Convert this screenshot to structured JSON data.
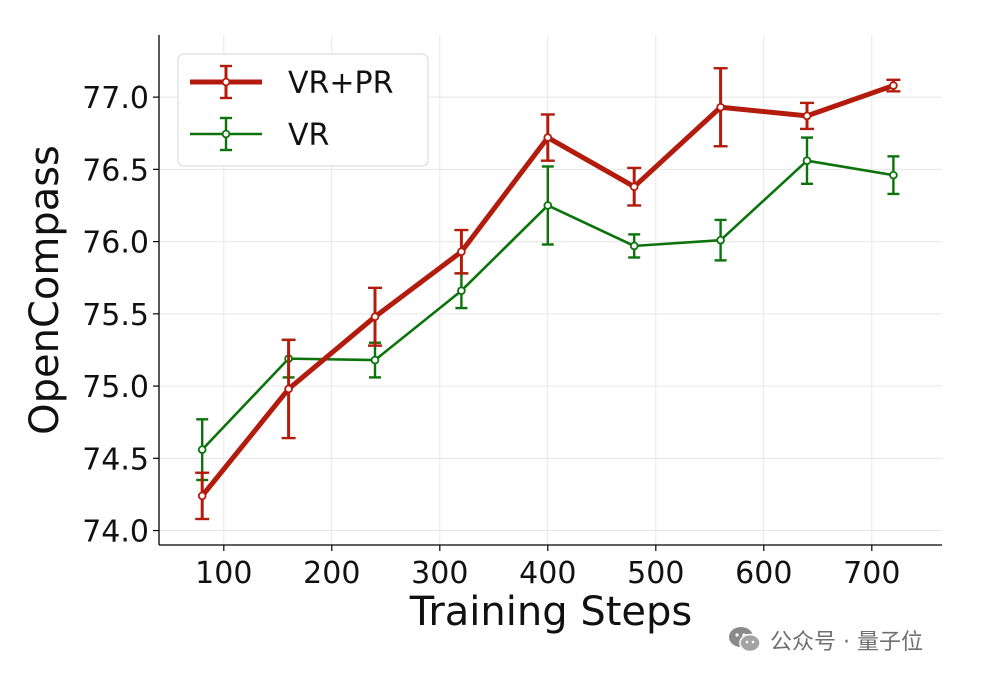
{
  "chart_data": {
    "type": "line",
    "title": "",
    "xlabel": "Training Steps",
    "ylabel": "OpenCompass",
    "xlim": [
      40,
      765
    ],
    "ylim": [
      73.9,
      77.43
    ],
    "xticks": [
      100,
      200,
      300,
      400,
      500,
      600,
      700
    ],
    "yticks": [
      74.0,
      74.5,
      75.0,
      75.5,
      76.0,
      76.5,
      77.0
    ],
    "grid": true,
    "legend_position": "top-left",
    "series": [
      {
        "name": "VR+PR",
        "color": "#b31b0c",
        "x": [
          80,
          160,
          240,
          320,
          400,
          480,
          560,
          640,
          720
        ],
        "y": [
          74.24,
          74.98,
          75.48,
          75.93,
          76.72,
          76.38,
          76.93,
          76.87,
          77.08
        ],
        "err": [
          0.16,
          0.34,
          0.2,
          0.15,
          0.16,
          0.13,
          0.27,
          0.09,
          0.04
        ]
      },
      {
        "name": "VR",
        "color": "#0c730c",
        "x": [
          80,
          160,
          240,
          320,
          400,
          480,
          560,
          640,
          720
        ],
        "y": [
          74.56,
          75.19,
          75.18,
          75.66,
          76.25,
          75.97,
          76.01,
          76.56,
          76.46
        ],
        "err": [
          0.21,
          0.13,
          0.12,
          0.12,
          0.27,
          0.08,
          0.14,
          0.16,
          0.13
        ]
      }
    ]
  },
  "watermark": {
    "icon": "wechat-icon",
    "text": "公众号 · 量子位"
  }
}
